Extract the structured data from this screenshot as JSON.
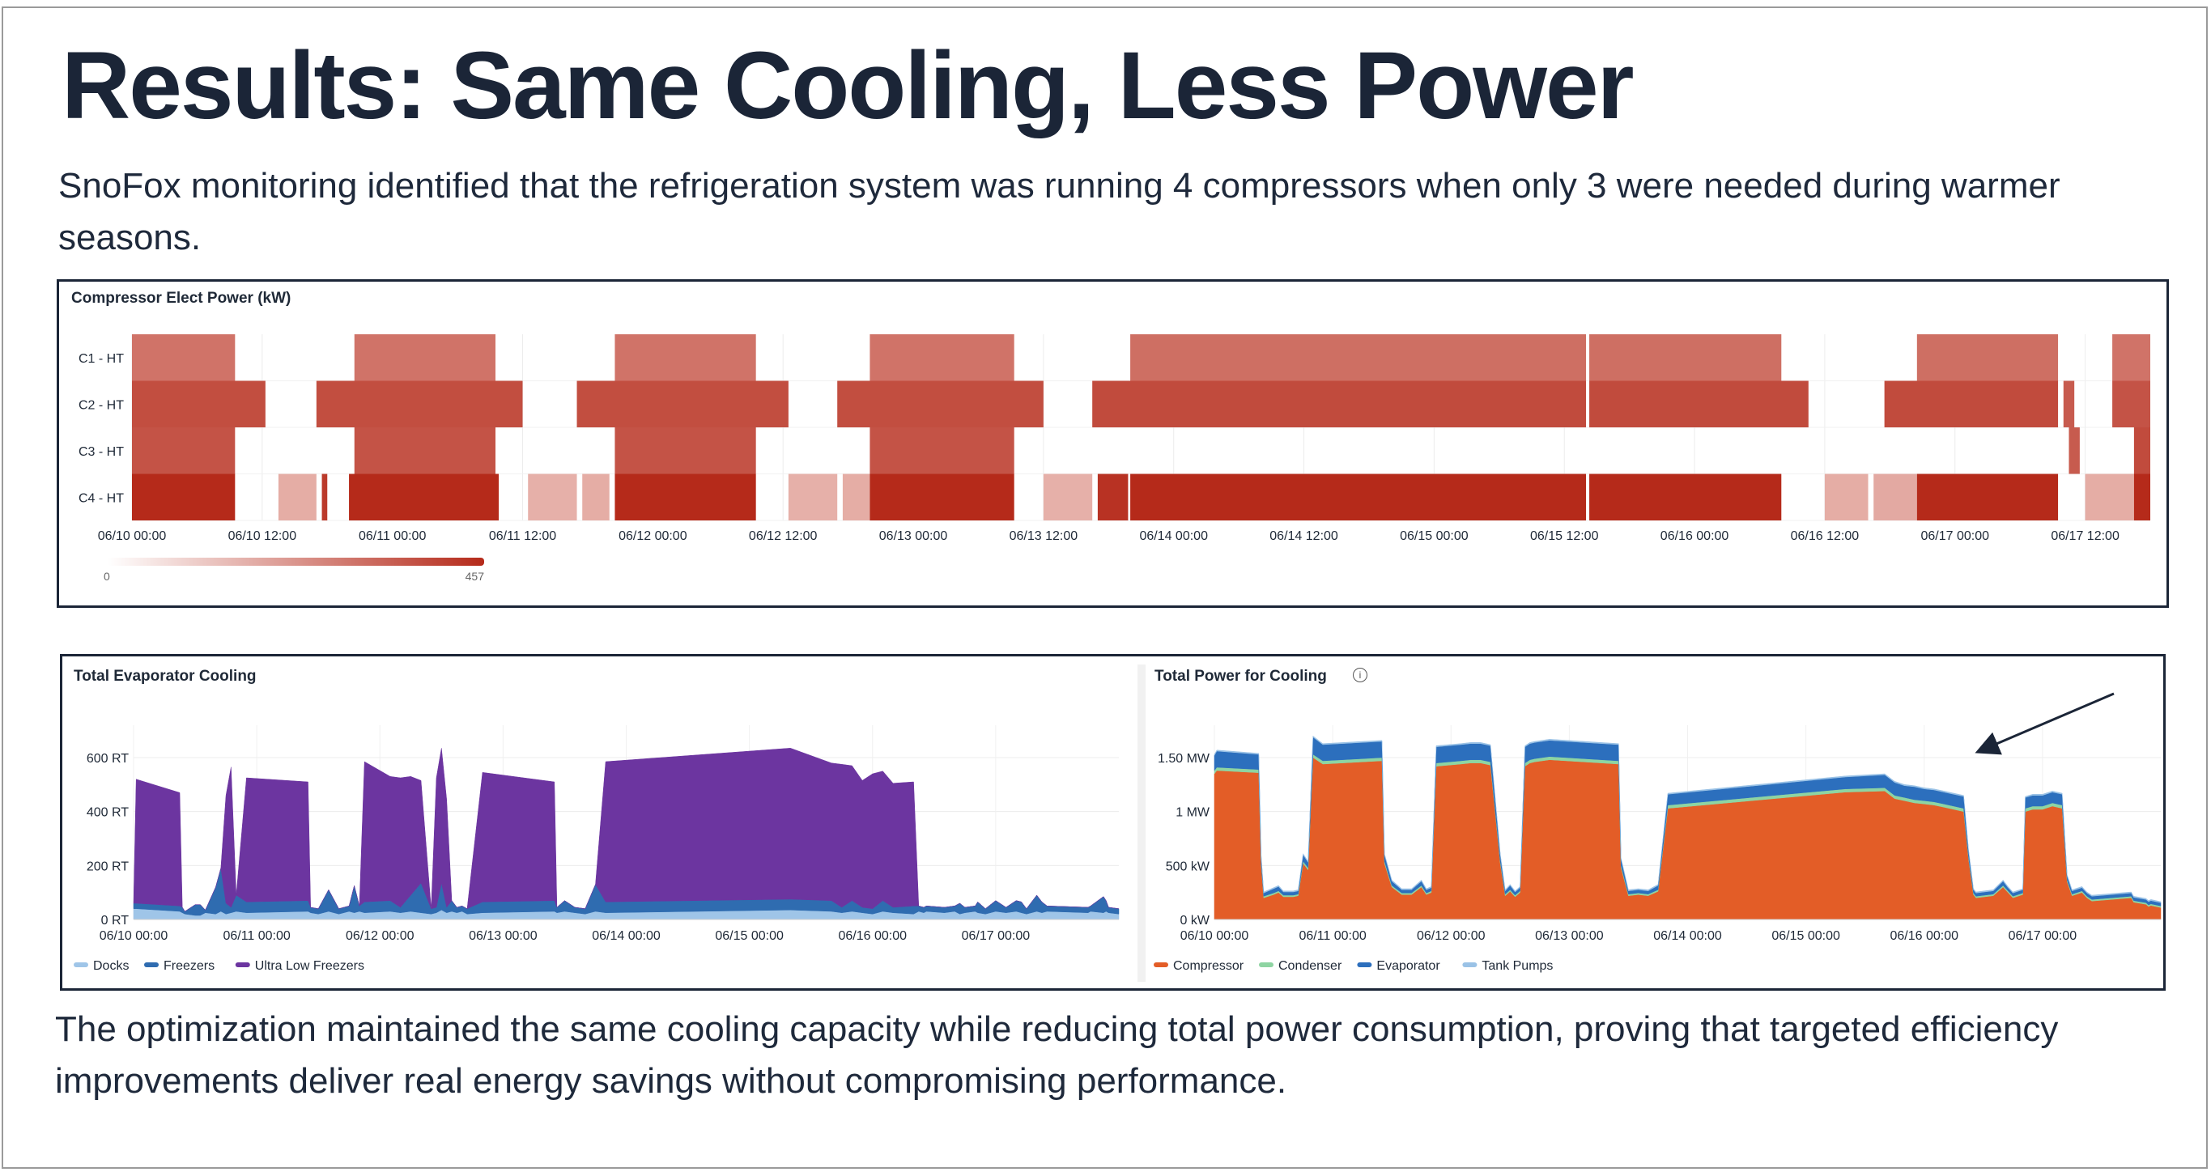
{
  "slide": {
    "title": "Results: Same Cooling, Less Power",
    "intro": "SnoFox monitoring identified that the refrigeration system was running 4 compressors when only 3 were needed during warmer seasons.",
    "conclusion": "The optimization maintained the same cooling capacity while reducing total power consumption, proving that targeted efficiency improvements deliver real energy savings without compromising performance."
  },
  "colors": {
    "heat_low": "#fbeae7",
    "heat_high": "#b52a1a",
    "text": "#1b2537",
    "docks": "#9fc5e8",
    "freezers": "#2f6cb0",
    "ultra_low": "#6c35a0",
    "compressor": "#e35d27",
    "condenser": "#8ed4a2",
    "evaporator": "#2c6fbd",
    "tank_pumps": "#9ac2e6"
  },
  "chart_data": [
    {
      "type": "heatmap",
      "title": "Compressor Elect Power (kW)",
      "rows": [
        "C1 - HT",
        "C2 - HT",
        "C3 - HT",
        "C4 - HT"
      ],
      "xlim_hours": [
        0,
        186
      ],
      "xticks": [
        "06/10 00:00",
        "06/10 12:00",
        "06/11 00:00",
        "06/11 12:00",
        "06/12 00:00",
        "06/12 12:00",
        "06/13 00:00",
        "06/13 12:00",
        "06/14 00:00",
        "06/14 12:00",
        "06/15 00:00",
        "06/15 12:00",
        "06/16 00:00",
        "06/16 12:00",
        "06/17 00:00",
        "06/17 12:00"
      ],
      "xtick_hours": [
        0,
        12,
        24,
        36,
        48,
        60,
        72,
        84,
        96,
        108,
        120,
        132,
        144,
        156,
        168,
        180
      ],
      "color_scale": {
        "min": 0,
        "max": 457,
        "min_label": "0",
        "max_label": "457"
      },
      "segments": [
        [
          [
            0,
            9.5,
            0.55
          ],
          [
            20.5,
            33.5,
            0.55
          ],
          [
            44.5,
            57.5,
            0.55
          ],
          [
            68,
            81.3,
            0.55
          ],
          [
            92,
            134,
            0.58
          ],
          [
            134.3,
            152,
            0.58
          ],
          [
            164.5,
            177.5,
            0.58
          ],
          [
            182.5,
            186,
            0.55
          ]
        ],
        [
          [
            0,
            12.3,
            0.78
          ],
          [
            17,
            36,
            0.78
          ],
          [
            41,
            60.5,
            0.78
          ],
          [
            65,
            84,
            0.78
          ],
          [
            88.5,
            134,
            0.8
          ],
          [
            134.3,
            154.5,
            0.8
          ],
          [
            161.5,
            177.5,
            0.8
          ],
          [
            178,
            179,
            0.7
          ],
          [
            182.5,
            186,
            0.75
          ]
        ],
        [
          [
            0,
            9.5,
            0.75
          ],
          [
            20.5,
            33.5,
            0.75
          ],
          [
            44.5,
            57.5,
            0.75
          ],
          [
            68,
            81.3,
            0.75
          ],
          [
            178.5,
            179.5,
            0.7
          ],
          [
            184.5,
            186,
            0.8
          ]
        ],
        [
          [
            0,
            9.5,
            1.0
          ],
          [
            13.5,
            17,
            0.2
          ],
          [
            17.5,
            18,
            0.9
          ],
          [
            20,
            33.8,
            1.0
          ],
          [
            36.5,
            41,
            0.18
          ],
          [
            41.5,
            44,
            0.2
          ],
          [
            44.5,
            57.5,
            1.0
          ],
          [
            60.5,
            65,
            0.18
          ],
          [
            65.5,
            68,
            0.2
          ],
          [
            68,
            81.3,
            1.0
          ],
          [
            84,
            88.5,
            0.18
          ],
          [
            89,
            91.8,
            0.95
          ],
          [
            92,
            134,
            1.0
          ],
          [
            134.3,
            152,
            1.0
          ],
          [
            156,
            160,
            0.2
          ],
          [
            160.5,
            164.5,
            0.22
          ],
          [
            164.5,
            177.5,
            1.0
          ],
          [
            180,
            184.5,
            0.2
          ],
          [
            184.5,
            186,
            1.0
          ]
        ]
      ]
    },
    {
      "type": "area",
      "stacked": true,
      "title": "Total Evaporator Cooling",
      "ylabel": "RT",
      "ylim": [
        0,
        720
      ],
      "xlim_hours": [
        0,
        192
      ],
      "yticks": [
        "0 RT",
        "200 RT",
        "400 RT",
        "600 RT"
      ],
      "ytick_values": [
        0,
        200,
        400,
        600
      ],
      "xticks": [
        "06/10 00:00",
        "06/11 00:00",
        "06/12 00:00",
        "06/13 00:00",
        "06/14 00:00",
        "06/15 00:00",
        "06/16 00:00",
        "06/17 00:00"
      ],
      "xtick_hours": [
        0,
        24,
        48,
        72,
        96,
        120,
        144,
        168
      ],
      "legend": [
        "Docks",
        "Freezers",
        "Ultra Low Freezers"
      ],
      "x": [
        0,
        0.5,
        9,
        9.5,
        10,
        12,
        13,
        14,
        16,
        17,
        18,
        19,
        20,
        22,
        34,
        34.5,
        36,
        38,
        40,
        42,
        43,
        44,
        45,
        50,
        52,
        54,
        56,
        58,
        59,
        60,
        61,
        62,
        63,
        64,
        65,
        68,
        82,
        82.5,
        84,
        86,
        88,
        90,
        92,
        128,
        136,
        138,
        140,
        142,
        144,
        146,
        148,
        152,
        153,
        154,
        154.5,
        158,
        160,
        161,
        162,
        164,
        164.5,
        166,
        168,
        170,
        172,
        173,
        174,
        176,
        177,
        178,
        186,
        186.5,
        189,
        189.5,
        190,
        192
      ],
      "series": [
        {
          "name": "Docks",
          "values": [
            40,
            40,
            30,
            25,
            20,
            15,
            15,
            25,
            20,
            30,
            20,
            25,
            30,
            25,
            30,
            25,
            20,
            30,
            20,
            30,
            25,
            30,
            25,
            30,
            25,
            30,
            25,
            20,
            25,
            35,
            25,
            30,
            25,
            30,
            20,
            25,
            30,
            25,
            30,
            25,
            20,
            30,
            25,
            35,
            30,
            25,
            30,
            25,
            20,
            30,
            25,
            20,
            30,
            25,
            30,
            25,
            30,
            20,
            25,
            30,
            25,
            20,
            30,
            25,
            30,
            25,
            20,
            30,
            25,
            30,
            25,
            30,
            25,
            30,
            25,
            20
          ]
        },
        {
          "name": "Freezers",
          "values": [
            20,
            20,
            20,
            20,
            10,
            40,
            40,
            10,
            100,
            160,
            40,
            20,
            60,
            40,
            40,
            20,
            20,
            80,
            20,
            20,
            100,
            20,
            40,
            40,
            20,
            60,
            110,
            20,
            20,
            100,
            20,
            40,
            20,
            20,
            20,
            40,
            40,
            20,
            40,
            20,
            20,
            100,
            40,
            40,
            40,
            20,
            40,
            20,
            20,
            40,
            20,
            30,
            20,
            20,
            20,
            20,
            20,
            40,
            20,
            20,
            40,
            20,
            40,
            20,
            40,
            40,
            20,
            60,
            40,
            20,
            20,
            20,
            60,
            40,
            20,
            20
          ]
        },
        {
          "name": "Ultra Low Freezers",
          "values": [
            0,
            460,
            420,
            0,
            0,
            0,
            0,
            0,
            0,
            0,
            400,
            520,
            0,
            460,
            440,
            0,
            0,
            0,
            0,
            0,
            0,
            0,
            520,
            460,
            480,
            440,
            380,
            0,
            480,
            500,
            400,
            0,
            0,
            0,
            0,
            480,
            440,
            0,
            0,
            0,
            0,
            0,
            520,
            560,
            510,
            530,
            500,
            470,
            500,
            480,
            460,
            460,
            0,
            0,
            0,
            0,
            0,
            0,
            0,
            0,
            0,
            0,
            0,
            0,
            0,
            0,
            0,
            0,
            0,
            0,
            0,
            0,
            0,
            0,
            0,
            0
          ]
        }
      ]
    },
    {
      "type": "area",
      "stacked": true,
      "title": "Total Power for Cooling",
      "ylabel": "kW",
      "ylim": [
        0,
        1800
      ],
      "xlim_hours": [
        0,
        192
      ],
      "yticks": [
        "0 kW",
        "500 kW",
        "1 MW",
        "1.50 MW"
      ],
      "ytick_values": [
        0,
        500,
        1000,
        1500
      ],
      "xticks": [
        "06/10 00:00",
        "06/11 00:00",
        "06/12 00:00",
        "06/13 00:00",
        "06/14 00:00",
        "06/15 00:00",
        "06/16 00:00",
        "06/17 00:00"
      ],
      "xtick_hours": [
        0,
        24,
        48,
        72,
        96,
        120,
        144,
        168
      ],
      "legend": [
        "Compressor",
        "Condenser",
        "Evaporator",
        "Tank Pumps"
      ],
      "annotation": "arrow pointing to the reduced plateau near 06/15 12:00",
      "x": [
        0,
        0.5,
        9,
        9.5,
        10,
        12,
        13,
        14,
        16,
        17,
        18,
        19,
        20,
        22,
        34,
        34.5,
        36,
        38,
        40,
        42,
        43,
        44,
        45,
        50,
        52,
        54,
        56,
        58,
        59,
        60,
        61,
        62,
        63,
        64,
        65,
        68,
        82,
        82.5,
        84,
        86,
        88,
        90,
        92,
        128,
        136,
        138,
        140,
        142,
        144,
        146,
        148,
        152,
        153,
        154,
        154.5,
        158,
        160,
        161,
        162,
        164,
        164.5,
        166,
        168,
        170,
        172,
        173,
        174,
        176,
        177,
        178,
        186,
        186.5,
        189,
        189.5,
        190,
        192
      ],
      "series": [
        {
          "name": "Compressor",
          "values": [
            1350,
            1380,
            1360,
            500,
            200,
            230,
            250,
            210,
            210,
            220,
            520,
            460,
            1500,
            1440,
            1470,
            520,
            300,
            230,
            230,
            300,
            230,
            250,
            1420,
            1440,
            1450,
            1450,
            1430,
            520,
            220,
            260,
            210,
            250,
            1420,
            1450,
            1460,
            1480,
            1440,
            480,
            220,
            230,
            220,
            260,
            1030,
            1180,
            1190,
            1120,
            1100,
            1080,
            1070,
            1060,
            1040,
            1000,
            560,
            230,
            200,
            220,
            300,
            250,
            200,
            230,
            1000,
            1020,
            1020,
            1050,
            1030,
            350,
            220,
            250,
            200,
            170,
            200,
            160,
            140,
            120,
            130,
            110
          ]
        },
        {
          "name": "Condenser",
          "values": [
            30,
            30,
            30,
            20,
            15,
            15,
            15,
            15,
            15,
            15,
            20,
            20,
            30,
            30,
            30,
            20,
            15,
            15,
            15,
            15,
            15,
            15,
            30,
            30,
            30,
            30,
            30,
            20,
            15,
            15,
            15,
            15,
            30,
            30,
            30,
            30,
            30,
            20,
            15,
            15,
            15,
            15,
            30,
            30,
            30,
            30,
            30,
            30,
            30,
            30,
            30,
            30,
            20,
            15,
            15,
            15,
            15,
            15,
            15,
            15,
            30,
            30,
            30,
            30,
            30,
            15,
            15,
            15,
            15,
            15,
            15,
            15,
            15,
            15,
            15,
            15
          ]
        },
        {
          "name": "Evaporator",
          "values": [
            140,
            150,
            140,
            60,
            30,
            40,
            40,
            30,
            30,
            30,
            60,
            50,
            160,
            150,
            150,
            60,
            40,
            30,
            30,
            40,
            30,
            30,
            150,
            150,
            150,
            150,
            150,
            60,
            30,
            40,
            30,
            30,
            150,
            150,
            150,
            150,
            150,
            60,
            30,
            30,
            30,
            40,
            100,
            110,
            120,
            120,
            110,
            120,
            110,
            110,
            110,
            110,
            60,
            30,
            30,
            30,
            40,
            30,
            30,
            30,
            100,
            100,
            100,
            100,
            100,
            40,
            30,
            30,
            30,
            30,
            30,
            30,
            30,
            30,
            30,
            30
          ]
        },
        {
          "name": "Tank Pumps",
          "values": [
            10,
            10,
            10,
            10,
            10,
            10,
            10,
            10,
            10,
            10,
            10,
            10,
            10,
            10,
            10,
            10,
            10,
            10,
            10,
            10,
            10,
            10,
            10,
            10,
            10,
            10,
            10,
            10,
            10,
            10,
            10,
            10,
            10,
            10,
            10,
            10,
            10,
            10,
            10,
            10,
            10,
            10,
            10,
            10,
            10,
            10,
            10,
            10,
            10,
            10,
            10,
            10,
            10,
            10,
            10,
            10,
            10,
            10,
            10,
            10,
            10,
            10,
            10,
            10,
            10,
            10,
            10,
            10,
            10,
            10,
            10,
            10,
            10,
            10,
            10,
            10
          ]
        }
      ]
    }
  ]
}
